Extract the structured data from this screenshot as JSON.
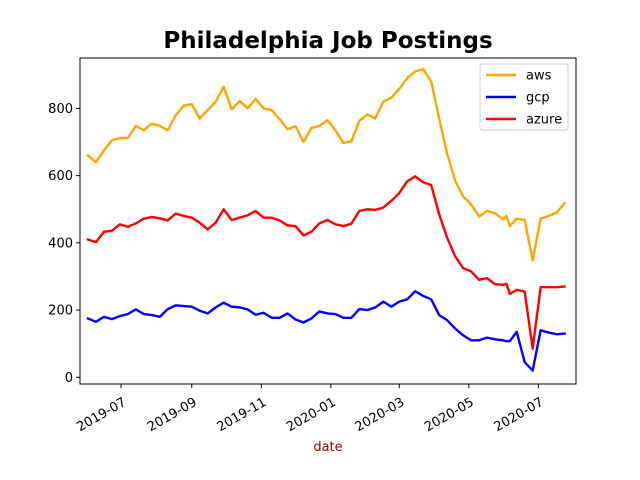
{
  "chart_data": {
    "type": "line",
    "title": "Philadelphia Job Postings",
    "xlabel": "date",
    "ylabel": "",
    "xlabel_color": "#8b0000",
    "xlim": [
      "2019-05-26",
      "2020-08-03"
    ],
    "ylim": [
      -20,
      950
    ],
    "xticks": [
      {
        "date": "2019-07-01",
        "label": "2019-07"
      },
      {
        "date": "2019-09-01",
        "label": "2019-09"
      },
      {
        "date": "2019-11-01",
        "label": "2019-11"
      },
      {
        "date": "2020-01-01",
        "label": "2020-01"
      },
      {
        "date": "2020-03-01",
        "label": "2020-03"
      },
      {
        "date": "2020-05-01",
        "label": "2020-05"
      },
      {
        "date": "2020-07-01",
        "label": "2020-07"
      }
    ],
    "yticks": [
      0,
      200,
      400,
      600,
      800
    ],
    "grid": false,
    "legend_position": "top-right",
    "x": [
      "2019-06-02",
      "2019-06-09",
      "2019-06-16",
      "2019-06-23",
      "2019-06-30",
      "2019-07-07",
      "2019-07-14",
      "2019-07-21",
      "2019-07-28",
      "2019-08-04",
      "2019-08-11",
      "2019-08-18",
      "2019-08-25",
      "2019-09-01",
      "2019-09-08",
      "2019-09-15",
      "2019-09-22",
      "2019-09-29",
      "2019-10-06",
      "2019-10-13",
      "2019-10-20",
      "2019-10-27",
      "2019-11-03",
      "2019-11-10",
      "2019-11-17",
      "2019-11-24",
      "2019-12-01",
      "2019-12-08",
      "2019-12-15",
      "2019-12-22",
      "2019-12-29",
      "2020-01-05",
      "2020-01-12",
      "2020-01-19",
      "2020-01-26",
      "2020-02-02",
      "2020-02-09",
      "2020-02-16",
      "2020-02-23",
      "2020-03-01",
      "2020-03-08",
      "2020-03-15",
      "2020-03-22",
      "2020-03-29",
      "2020-04-05",
      "2020-04-12",
      "2020-04-19",
      "2020-04-26",
      "2020-05-03",
      "2020-05-10",
      "2020-05-17",
      "2020-05-24",
      "2020-05-31",
      "2020-06-03",
      "2020-06-06",
      "2020-06-12",
      "2020-06-19",
      "2020-06-26",
      "2020-07-03",
      "2020-07-10",
      "2020-07-17",
      "2020-07-24"
    ],
    "series": [
      {
        "name": "aws",
        "color": "#ffa500",
        "values": [
          660,
          640,
          675,
          705,
          712,
          712,
          748,
          735,
          755,
          748,
          735,
          780,
          808,
          813,
          770,
          795,
          820,
          865,
          797,
          822,
          800,
          828,
          800,
          795,
          768,
          738,
          747,
          700,
          742,
          748,
          765,
          735,
          697,
          702,
          763,
          782,
          770,
          820,
          832,
          858,
          890,
          910,
          917,
          880,
          770,
          665,
          585,
          538,
          515,
          478,
          495,
          488,
          470,
          480,
          450,
          472,
          468,
          348,
          472,
          480,
          490,
          518
        ]
      },
      {
        "name": "gcp",
        "color": "#0000ff",
        "values": [
          175,
          165,
          180,
          173,
          182,
          188,
          202,
          188,
          185,
          180,
          203,
          214,
          212,
          210,
          198,
          190,
          208,
          222,
          210,
          208,
          202,
          186,
          192,
          177,
          177,
          190,
          172,
          163,
          175,
          196,
          190,
          188,
          177,
          177,
          203,
          200,
          208,
          225,
          210,
          225,
          232,
          256,
          242,
          232,
          185,
          170,
          145,
          125,
          110,
          110,
          118,
          113,
          110,
          107,
          108,
          135,
          45,
          20,
          140,
          133,
          128,
          130
        ]
      },
      {
        "name": "azure",
        "color": "#ff0000",
        "values": [
          410,
          402,
          433,
          436,
          455,
          448,
          458,
          472,
          477,
          473,
          467,
          487,
          480,
          475,
          460,
          440,
          460,
          500,
          468,
          475,
          482,
          495,
          475,
          475,
          467,
          452,
          450,
          422,
          433,
          458,
          468,
          455,
          450,
          457,
          495,
          500,
          498,
          505,
          525,
          548,
          583,
          598,
          580,
          572,
          485,
          415,
          360,
          325,
          315,
          290,
          295,
          277,
          275,
          278,
          248,
          260,
          255,
          85,
          268,
          268,
          268,
          270
        ]
      }
    ]
  }
}
